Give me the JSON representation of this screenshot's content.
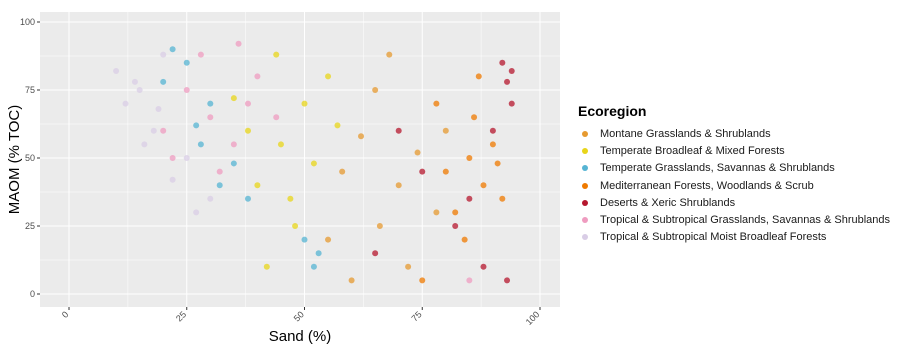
{
  "chart_data": {
    "type": "scatter",
    "xlabel": "Sand (%)",
    "ylabel": "MAOM (% TOC)",
    "xlim": [
      0,
      100
    ],
    "ylim": [
      0,
      100
    ],
    "x_ticks": [
      "0",
      "25",
      "50",
      "75",
      "100"
    ],
    "y_ticks": [
      "0",
      "25",
      "50",
      "75",
      "100"
    ],
    "grid": true,
    "panel_background": "#ebebeb",
    "legend": {
      "title": "Ecoregion",
      "placement": "right"
    },
    "series": [
      {
        "name": "Montane Grasslands & Shrublands",
        "color": "#e69a30",
        "points": [
          [
            62,
            58
          ],
          [
            70,
            40
          ],
          [
            78,
            30
          ],
          [
            55,
            20
          ],
          [
            65,
            75
          ],
          [
            72,
            10
          ],
          [
            58,
            45
          ],
          [
            68,
            88
          ],
          [
            80,
            60
          ],
          [
            60,
            5
          ],
          [
            74,
            52
          ],
          [
            66,
            25
          ]
        ]
      },
      {
        "name": "Temperate Broadleaf & Mixed Forests",
        "color": "#e8d51a",
        "points": [
          [
            45,
            55
          ],
          [
            50,
            70
          ],
          [
            40,
            40
          ],
          [
            48,
            25
          ],
          [
            55,
            80
          ],
          [
            38,
            60
          ],
          [
            52,
            48
          ],
          [
            44,
            88
          ],
          [
            47,
            35
          ],
          [
            42,
            10
          ],
          [
            35,
            72
          ],
          [
            57,
            62
          ]
        ]
      },
      {
        "name": "Temperate Grasslands, Savannas & Shrublands",
        "color": "#56b4d3",
        "points": [
          [
            25,
            85
          ],
          [
            30,
            70
          ],
          [
            28,
            55
          ],
          [
            35,
            48
          ],
          [
            22,
            90
          ],
          [
            50,
            20
          ],
          [
            52,
            10
          ],
          [
            32,
            40
          ],
          [
            27,
            62
          ],
          [
            53,
            15
          ],
          [
            20,
            78
          ],
          [
            38,
            35
          ]
        ]
      },
      {
        "name": "Mediterranean Forests, Woodlands & Scrub",
        "color": "#ef7a00",
        "points": [
          [
            85,
            50
          ],
          [
            88,
            40
          ],
          [
            90,
            55
          ],
          [
            82,
            30
          ],
          [
            86,
            65
          ],
          [
            80,
            45
          ],
          [
            92,
            35
          ],
          [
            84,
            20
          ],
          [
            78,
            70
          ],
          [
            91,
            48
          ],
          [
            75,
            5
          ],
          [
            87,
            80
          ]
        ]
      },
      {
        "name": "Deserts & Xeric Shrublands",
        "color": "#b5172e",
        "points": [
          [
            93,
            78
          ],
          [
            92,
            85
          ],
          [
            94,
            70
          ],
          [
            90,
            60
          ],
          [
            85,
            35
          ],
          [
            88,
            10
          ],
          [
            93,
            5
          ],
          [
            75,
            45
          ],
          [
            82,
            25
          ],
          [
            70,
            60
          ],
          [
            94,
            82
          ],
          [
            65,
            15
          ]
        ]
      },
      {
        "name": "Tropical & Subtropical Grasslands, Savannas & Shrublands",
        "color": "#ef9cc0",
        "points": [
          [
            30,
            65
          ],
          [
            35,
            55
          ],
          [
            25,
            75
          ],
          [
            40,
            80
          ],
          [
            32,
            45
          ],
          [
            20,
            60
          ],
          [
            28,
            88
          ],
          [
            38,
            70
          ],
          [
            22,
            50
          ],
          [
            36,
            92
          ],
          [
            85,
            5
          ],
          [
            44,
            65
          ]
        ]
      },
      {
        "name": "Tropical & Subtropical Moist Broadleaf Forests",
        "color": "#d9cde6",
        "points": [
          [
            10,
            82
          ],
          [
            15,
            75
          ],
          [
            18,
            60
          ],
          [
            25,
            50
          ],
          [
            20,
            88
          ],
          [
            12,
            70
          ],
          [
            30,
            35
          ],
          [
            16,
            55
          ],
          [
            22,
            42
          ],
          [
            14,
            78
          ],
          [
            27,
            30
          ],
          [
            19,
            68
          ]
        ]
      }
    ]
  }
}
